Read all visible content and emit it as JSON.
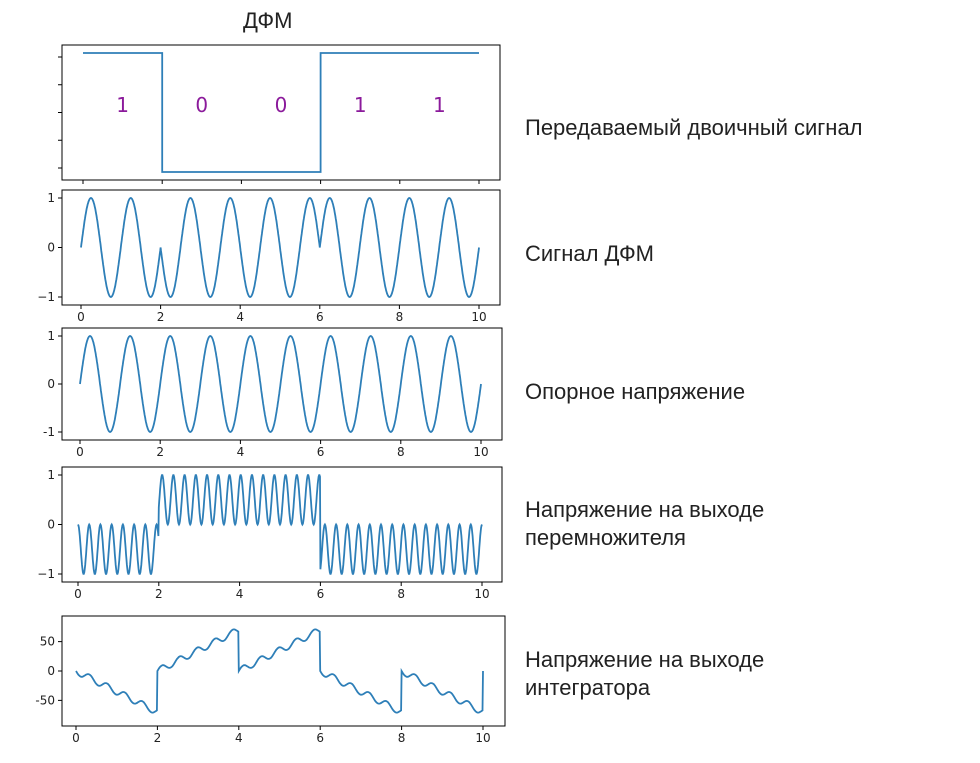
{
  "figure_title": "ДФМ",
  "colors": {
    "line": "#2e7fb8",
    "bits": "#8b1a9b",
    "axis": "#000000",
    "text": "#222222"
  },
  "chart_data": [
    {
      "type": "line",
      "name": "binary",
      "label": "Передаваемый двоичный сигнал",
      "xlim": [
        0,
        10
      ],
      "ylim": [
        -1.1,
        1.1
      ],
      "x": [
        0,
        2,
        2,
        6,
        6,
        10
      ],
      "y": [
        1,
        1,
        -1,
        -1,
        1,
        1
      ],
      "bits": [
        {
          "x": 1,
          "text": "1"
        },
        {
          "x": 3,
          "text": "0"
        },
        {
          "x": 5,
          "text": "0"
        },
        {
          "x": 7,
          "text": "1"
        },
        {
          "x": 9,
          "text": "1"
        }
      ],
      "xticks": [],
      "yticks": []
    },
    {
      "type": "line",
      "name": "dpsk",
      "label": "Сигнал ДФМ",
      "xlim": [
        0,
        10
      ],
      "ylim": [
        -1,
        1
      ],
      "formula": "sign(b(t))*sin(2*pi*f*t)",
      "frequency": 0.5,
      "xticks": [
        0,
        2,
        4,
        6,
        8,
        10
      ],
      "yticks": [
        -1,
        0,
        1
      ],
      "yticklabels": [
        "−1",
        "0",
        "1"
      ]
    },
    {
      "type": "line",
      "name": "reference",
      "label": "Опорное напряжение",
      "xlim": [
        0,
        10
      ],
      "ylim": [
        -1,
        1
      ],
      "formula": "sin(2*pi*f*t)",
      "frequency": 0.5,
      "xticks": [
        0,
        2,
        4,
        6,
        8,
        10
      ],
      "yticks": [
        -1,
        0,
        1
      ],
      "yticklabels": [
        "-1",
        "0",
        "1"
      ]
    },
    {
      "type": "line",
      "name": "product",
      "label": "Напряжение на выходе\nперемножителя",
      "xlim": [
        0,
        10
      ],
      "ylim": [
        -1,
        1
      ],
      "formula": "sign(b(t))*sin^2(2*pi*f*t) shifted",
      "xticks": [
        0,
        2,
        4,
        6,
        8,
        10
      ],
      "yticks": [
        -1,
        0,
        1
      ],
      "yticklabels": [
        "−1",
        "0",
        "1"
      ]
    },
    {
      "type": "line",
      "name": "integrator",
      "label": "Напряжение на выходе\nинтегратора",
      "xlim": [
        0,
        10
      ],
      "ylim": [
        -80,
        80
      ],
      "description": "staircase integral reset every 2 units",
      "xticks": [
        0,
        2,
        4,
        6,
        8,
        10
      ],
      "yticks": [
        -50,
        0,
        50
      ],
      "yticklabels": [
        "-50",
        "0",
        "50"
      ]
    }
  ]
}
